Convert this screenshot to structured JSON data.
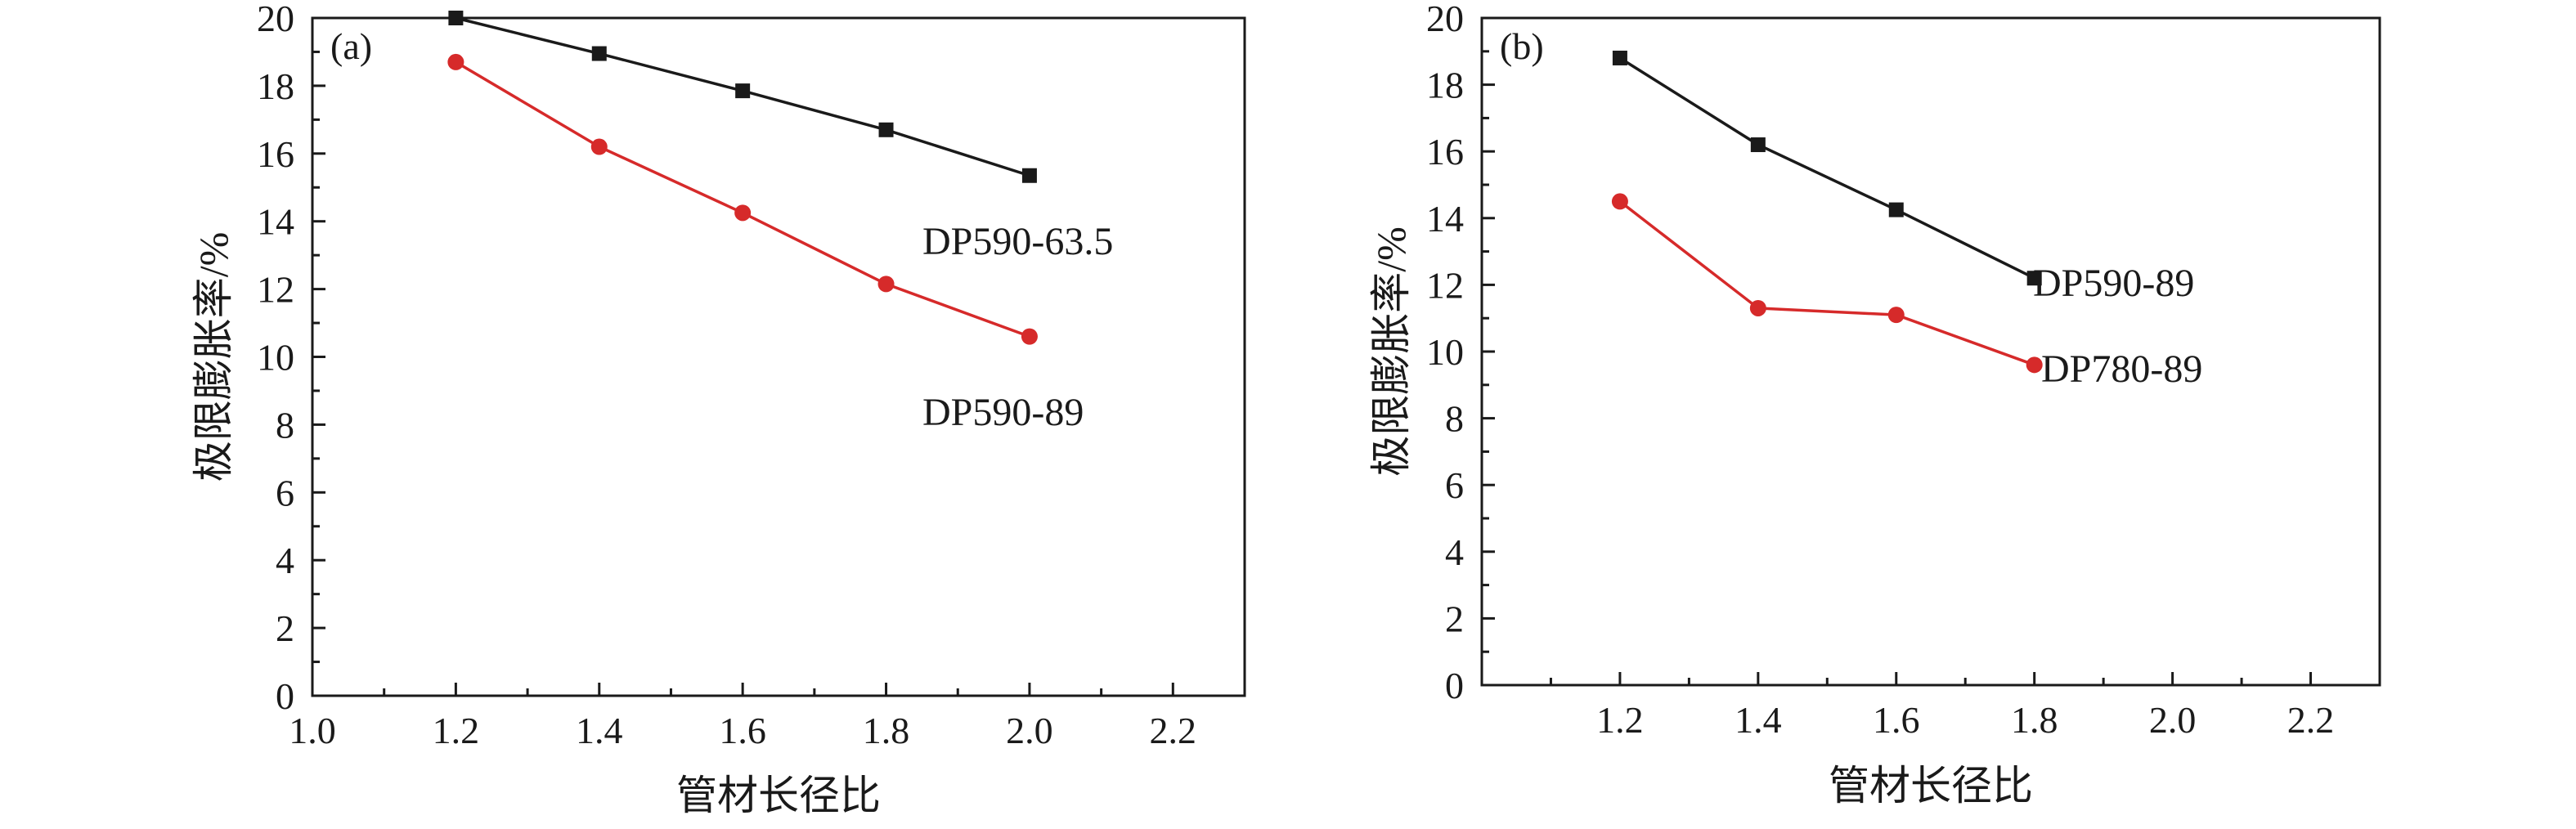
{
  "chart_data": [
    {
      "type": "line",
      "panel_label": "(a)",
      "xlabel": "管材长径比",
      "ylabel": "极限膨胀率/%",
      "xlim": [
        1.0,
        2.3
      ],
      "ylim": [
        0,
        20
      ],
      "xticks": [
        "1.0",
        "1.2",
        "1.4",
        "1.6",
        "1.8",
        "2.0",
        "2.2"
      ],
      "yticks": [
        "0",
        "2",
        "4",
        "6",
        "8",
        "10",
        "12",
        "14",
        "16",
        "18",
        "20"
      ],
      "grid": false,
      "legend": "none",
      "series": [
        {
          "name": "DP590-63.5",
          "marker": "square",
          "color": "#1a1a1a",
          "x": [
            1.2,
            1.4,
            1.6,
            1.8,
            2.0
          ],
          "y": [
            20.0,
            18.95,
            17.85,
            16.7,
            15.35
          ]
        },
        {
          "name": "DP590-89",
          "marker": "circle",
          "color": "#d62a2a",
          "x": [
            1.2,
            1.4,
            1.6,
            1.8,
            2.0
          ],
          "y": [
            18.7,
            16.2,
            14.25,
            12.15,
            10.6
          ]
        }
      ]
    },
    {
      "type": "line",
      "panel_label": "(b)",
      "xlabel": "管材长径比",
      "ylabel": "极限膨胀率/%",
      "xlim": [
        1.0,
        2.3
      ],
      "ylim": [
        0,
        20
      ],
      "xticks": [
        "1.2",
        "1.4",
        "1.6",
        "1.8",
        "2.0",
        "2.2"
      ],
      "yticks": [
        "0",
        "2",
        "4",
        "6",
        "8",
        "10",
        "12",
        "14",
        "16",
        "18",
        "20"
      ],
      "grid": false,
      "legend": "none",
      "series": [
        {
          "name": "DP590-89",
          "marker": "square",
          "color": "#1a1a1a",
          "x": [
            1.2,
            1.4,
            1.6,
            1.8
          ],
          "y": [
            18.8,
            16.2,
            14.25,
            12.2
          ]
        },
        {
          "name": "DP780-89",
          "marker": "circle",
          "color": "#d62a2a",
          "x": [
            1.2,
            1.4,
            1.6,
            1.8
          ],
          "y": [
            14.5,
            11.3,
            11.1,
            9.6
          ]
        }
      ]
    }
  ]
}
